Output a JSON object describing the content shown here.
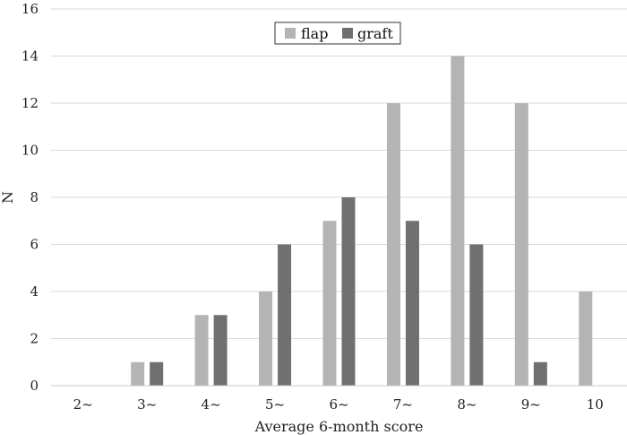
{
  "chart_data": {
    "type": "bar",
    "categories": [
      "2~",
      "3~",
      "4~",
      "5~",
      "6~",
      "7~",
      "8~",
      "9~",
      "10"
    ],
    "series": [
      {
        "name": "flap",
        "values": [
          0,
          1,
          3,
          4,
          7,
          12,
          14,
          12,
          4
        ],
        "color": "#b4b4b6"
      },
      {
        "name": "graft",
        "values": [
          0,
          1,
          3,
          6,
          8,
          7,
          6,
          1,
          0
        ],
        "color": "#707072"
      }
    ],
    "yticks": [
      "0",
      "2",
      "4",
      "6",
      "8",
      "10",
      "12",
      "14",
      "16"
    ],
    "ylim": [
      0,
      16
    ],
    "xlabel": "Average 6-month score",
    "ylabel": "N",
    "grid": true,
    "legend_position": "top-center"
  }
}
